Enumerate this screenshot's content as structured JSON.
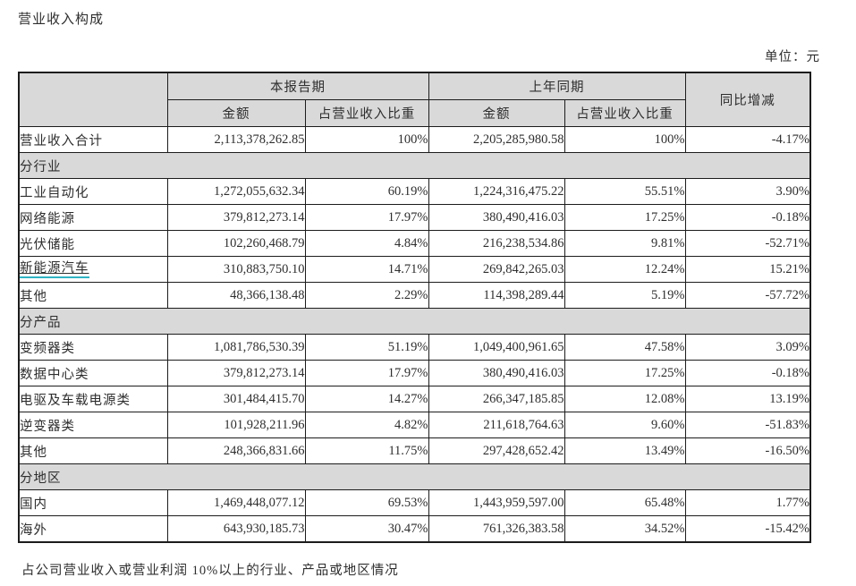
{
  "page": {
    "title": "营业收入构成",
    "unit_note": "单位：元",
    "footer_note": "占公司营业收入或营业利润 10%以上的行业、产品或地区情况"
  },
  "colors": {
    "header_bg": "#d9d9d9",
    "border": "#1c1c1c",
    "text": "#2e2e2e",
    "underline_accent": "#2fb3c4",
    "page_bg": "#ffffff"
  },
  "table": {
    "headers": {
      "current_period": "本报告期",
      "prior_period": "上年同期",
      "yoy_change": "同比增减",
      "amount": "金额",
      "revenue_share": "占营业收入比重"
    },
    "rows": [
      {
        "type": "data",
        "label": "营业收入合计",
        "cur_amount": "2,113,378,262.85",
        "cur_share": "100%",
        "prev_amount": "2,205,285,980.58",
        "prev_share": "100%",
        "yoy": "-4.17%"
      },
      {
        "type": "section",
        "label": "分行业"
      },
      {
        "type": "data",
        "label": "工业自动化",
        "cur_amount": "1,272,055,632.34",
        "cur_share": "60.19%",
        "prev_amount": "1,224,316,475.22",
        "prev_share": "55.51%",
        "yoy": "3.90%"
      },
      {
        "type": "data",
        "label": "网络能源",
        "cur_amount": "379,812,273.14",
        "cur_share": "17.97%",
        "prev_amount": "380,490,416.03",
        "prev_share": "17.25%",
        "yoy": "-0.18%"
      },
      {
        "type": "data",
        "label": "光伏储能",
        "cur_amount": "102,260,468.79",
        "cur_share": "4.84%",
        "prev_amount": "216,238,534.86",
        "prev_share": "9.81%",
        "yoy": "-52.71%"
      },
      {
        "type": "data",
        "label": "新能源汽车",
        "underlined": true,
        "cur_amount": "310,883,750.10",
        "cur_share": "14.71%",
        "prev_amount": "269,842,265.03",
        "prev_share": "12.24%",
        "yoy": "15.21%"
      },
      {
        "type": "data",
        "label": "其他",
        "cur_amount": "48,366,138.48",
        "cur_share": "2.29%",
        "prev_amount": "114,398,289.44",
        "prev_share": "5.19%",
        "yoy": "-57.72%"
      },
      {
        "type": "section",
        "label": "分产品"
      },
      {
        "type": "data",
        "label": "变频器类",
        "cur_amount": "1,081,786,530.39",
        "cur_share": "51.19%",
        "prev_amount": "1,049,400,961.65",
        "prev_share": "47.58%",
        "yoy": "3.09%"
      },
      {
        "type": "data",
        "label": "数据中心类",
        "cur_amount": "379,812,273.14",
        "cur_share": "17.97%",
        "prev_amount": "380,490,416.03",
        "prev_share": "17.25%",
        "yoy": "-0.18%"
      },
      {
        "type": "data",
        "label": "电驱及车载电源类",
        "cur_amount": "301,484,415.70",
        "cur_share": "14.27%",
        "prev_amount": "266,347,185.85",
        "prev_share": "12.08%",
        "yoy": "13.19%"
      },
      {
        "type": "data",
        "label": "逆变器类",
        "cur_amount": "101,928,211.96",
        "cur_share": "4.82%",
        "prev_amount": "211,618,764.63",
        "prev_share": "9.60%",
        "yoy": "-51.83%"
      },
      {
        "type": "data",
        "label": "其他",
        "cur_amount": "248,366,831.66",
        "cur_share": "11.75%",
        "prev_amount": "297,428,652.42",
        "prev_share": "13.49%",
        "yoy": "-16.50%"
      },
      {
        "type": "section",
        "label": "分地区"
      },
      {
        "type": "data",
        "label": "国内",
        "cur_amount": "1,469,448,077.12",
        "cur_share": "69.53%",
        "prev_amount": "1,443,959,597.00",
        "prev_share": "65.48%",
        "yoy": "1.77%"
      },
      {
        "type": "data",
        "label": "海外",
        "cur_amount": "643,930,185.73",
        "cur_share": "30.47%",
        "prev_amount": "761,326,383.58",
        "prev_share": "34.52%",
        "yoy": "-15.42%"
      }
    ]
  }
}
